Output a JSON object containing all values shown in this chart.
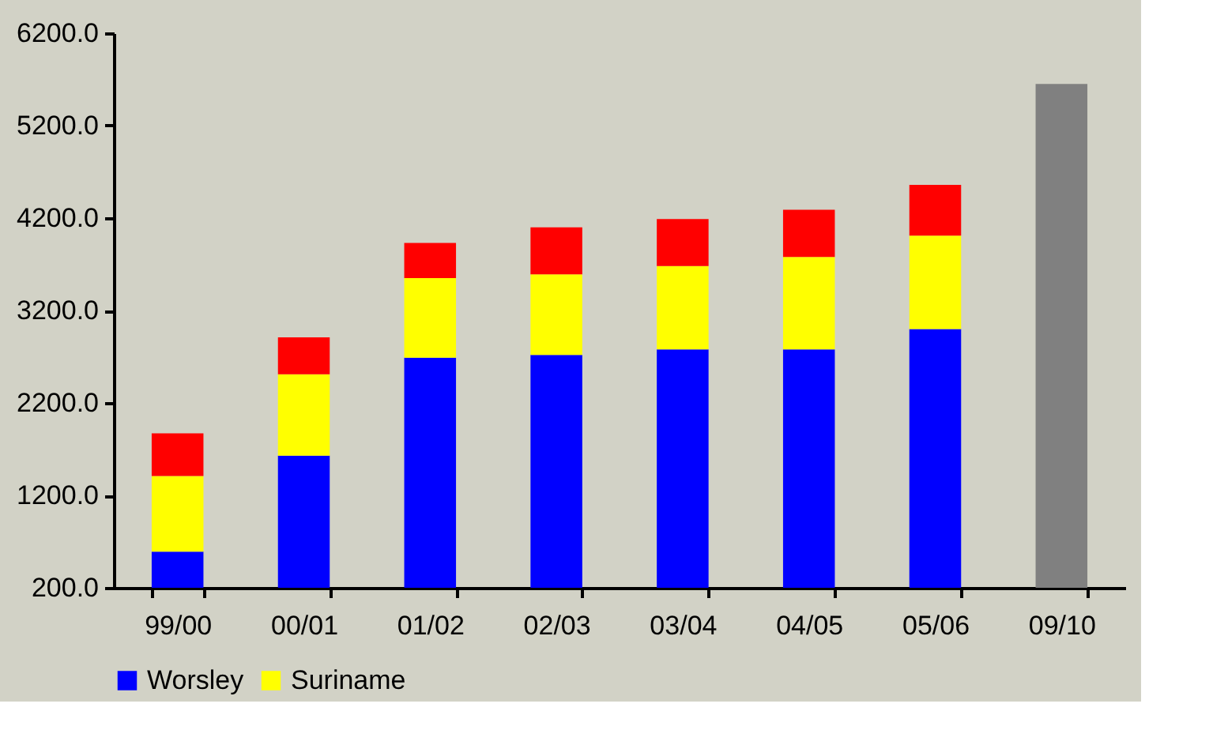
{
  "chart_data": {
    "type": "bar",
    "stacked": true,
    "categories": [
      "99/00",
      "00/01",
      "01/02",
      "02/03",
      "03/04",
      "04/05",
      "05/06",
      "09/10"
    ],
    "series": [
      {
        "name": "Worsley",
        "color": "#0000ff",
        "values": [
          590,
          1630,
          2690,
          2720,
          2780,
          2780,
          3000,
          null
        ]
      },
      {
        "name": "Suriname",
        "color": "#ffff00",
        "values": [
          820,
          880,
          860,
          870,
          900,
          1000,
          1010,
          null
        ]
      },
      {
        "color": "#ff0000",
        "values": [
          460,
          400,
          380,
          510,
          510,
          510,
          550,
          null
        ]
      },
      {
        "color": "#808080",
        "values": [
          null,
          null,
          null,
          null,
          null,
          null,
          null,
          5650
        ]
      }
    ],
    "ylim": [
      200,
      6200
    ],
    "yticks": [
      {
        "value": 200,
        "label": "200.0"
      },
      {
        "value": 1200,
        "label": "1200.0"
      },
      {
        "value": 2200,
        "label": "2200.0"
      },
      {
        "value": 3200,
        "label": "3200.0"
      },
      {
        "value": 4200,
        "label": "4200.0"
      },
      {
        "value": 5200,
        "label": "5200.0"
      },
      {
        "value": 6200,
        "label": "6200.0"
      }
    ],
    "grid": false,
    "legend": "bottom"
  }
}
